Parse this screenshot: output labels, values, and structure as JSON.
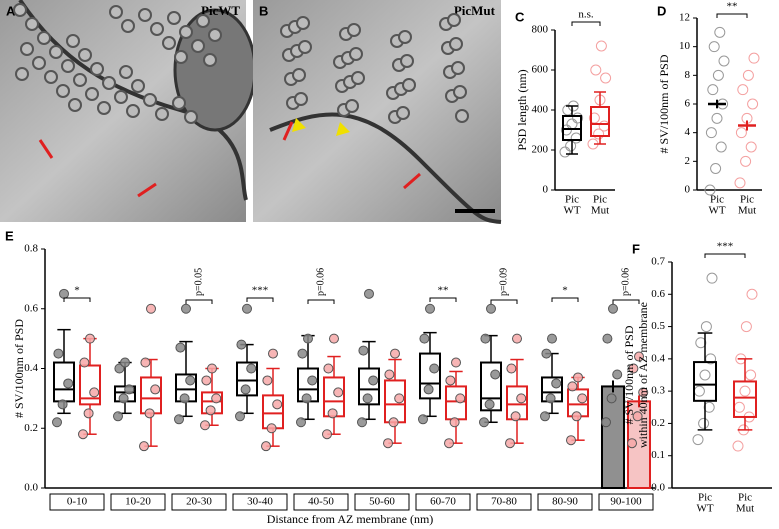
{
  "panels": {
    "A": {
      "letter": "A",
      "label": "PicWT"
    },
    "B": {
      "letter": "B",
      "label": "PicMut"
    }
  },
  "chart_data": [
    {
      "type": "box",
      "letter": "C",
      "ylabel": [
        "PSD length (nm)"
      ],
      "significance": "n.s.",
      "categories": [
        [
          "Pic",
          "WT"
        ],
        [
          "Pic",
          "Mut"
        ]
      ],
      "ylim": [
        0,
        800
      ],
      "yticks": [
        0,
        200,
        400,
        600,
        800
      ],
      "series": [
        {
          "color": "#000000",
          "point_color": "#999999",
          "q1": 250,
          "median": 305,
          "q3": 370,
          "whisker_low": 180,
          "whisker_high": 420,
          "points": [
            190,
            220,
            260,
            300,
            330,
            360,
            400,
            420
          ]
        },
        {
          "color": "#e02020",
          "point_color": "#f4a0a0",
          "q1": 270,
          "median": 330,
          "q3": 415,
          "whisker_low": 230,
          "whisker_high": 490,
          "points": [
            230,
            280,
            320,
            360,
            450,
            560,
            600,
            720
          ]
        }
      ]
    },
    {
      "type": "mean",
      "letter": "D",
      "ylabel": [
        "# SV/100nm of PSD"
      ],
      "significance": "**",
      "categories": [
        [
          "Pic",
          "WT"
        ],
        [
          "Pic",
          "Mut"
        ]
      ],
      "ylim": [
        0,
        12
      ],
      "yticks": [
        0,
        2,
        4,
        6,
        8,
        10,
        12
      ],
      "series": [
        {
          "color": "#000000",
          "point_color": "#999999",
          "mean": 6.0,
          "sem": 0.3,
          "points": [
            0,
            1.5,
            3,
            4,
            5,
            6,
            7,
            8,
            9,
            10,
            11
          ]
        },
        {
          "color": "#e02020",
          "point_color": "#f4a0a0",
          "mean": 4.5,
          "sem": 0.35,
          "points": [
            0.5,
            2,
            3,
            4,
            5,
            6,
            7,
            8,
            9.2
          ]
        }
      ]
    },
    {
      "type": "box",
      "letter": "E",
      "ylabel": [
        "# SV/100nm of PSD"
      ],
      "xlabel": "Distance from AZ membrane (nm)",
      "categories": [
        "0-10",
        "10-20",
        "20-30",
        "30-40",
        "40-50",
        "50-60",
        "60-70",
        "70-80",
        "80-90",
        "90-100"
      ],
      "significance": [
        "*",
        null,
        "p=0.05",
        "***",
        "p=0.06",
        null,
        "**",
        "p=0.09",
        "*",
        "p=0.06"
      ],
      "ylim": [
        0,
        0.8
      ],
      "yticks": [
        {
          "value": 0,
          "label": "0.0"
        },
        {
          "value": 0.2,
          "label": "0.2"
        },
        {
          "value": 0.4,
          "label": "0.4"
        },
        {
          "value": 0.6,
          "label": "0.6"
        },
        {
          "value": 0.8,
          "label": "0.8"
        }
      ],
      "series": [
        {
          "color": "#000000",
          "point_color": "#888888",
          "bar_color": "#909090",
          "q1": [
            0.29,
            0.29,
            0.29,
            0.31,
            0.29,
            0.28,
            0.3,
            0.26,
            0.29,
            null
          ],
          "median": [
            0.33,
            0.32,
            0.33,
            0.36,
            0.33,
            0.33,
            0.35,
            0.3,
            0.32,
            null
          ],
          "q3": [
            0.42,
            0.34,
            0.38,
            0.42,
            0.4,
            0.4,
            0.45,
            0.42,
            0.37,
            null
          ],
          "whisker_low": [
            0.25,
            0.25,
            0.24,
            0.25,
            0.23,
            0.23,
            0.24,
            0.22,
            0.25,
            null
          ],
          "whisker_high": [
            0.53,
            0.42,
            0.49,
            0.48,
            0.51,
            0.49,
            0.52,
            0.51,
            0.45,
            null
          ],
          "mean": [
            null,
            null,
            null,
            null,
            null,
            null,
            null,
            null,
            null,
            0.34
          ],
          "sem": [
            null,
            null,
            null,
            null,
            null,
            null,
            null,
            null,
            null,
            0.02
          ],
          "points": [
            [
              0.22,
              0.28,
              0.35,
              0.45,
              0.65
            ],
            [
              0.24,
              0.3,
              0.33,
              0.4,
              0.42
            ],
            [
              0.23,
              0.3,
              0.36,
              0.47,
              0.6
            ],
            [
              0.24,
              0.33,
              0.4,
              0.48,
              0.6
            ],
            [
              0.22,
              0.3,
              0.36,
              0.45,
              0.5
            ],
            [
              0.22,
              0.3,
              0.36,
              0.46,
              0.65
            ],
            [
              0.23,
              0.33,
              0.4,
              0.5,
              0.6
            ],
            [
              0.22,
              0.28,
              0.38,
              0.5,
              0.6
            ],
            [
              0.24,
              0.3,
              0.35,
              0.45,
              0.5
            ],
            [
              0.22,
              0.3,
              0.38,
              0.5,
              0.6
            ]
          ]
        },
        {
          "color": "#e02020",
          "point_color": "#f6a8a8",
          "bar_color": "#f6c4c4",
          "q1": [
            0.28,
            0.25,
            0.25,
            0.2,
            0.24,
            0.22,
            0.23,
            0.23,
            0.24,
            null
          ],
          "median": [
            0.3,
            0.3,
            0.29,
            0.25,
            0.29,
            0.28,
            0.29,
            0.28,
            0.28,
            null
          ],
          "q3": [
            0.41,
            0.37,
            0.32,
            0.31,
            0.37,
            0.36,
            0.34,
            0.34,
            0.33,
            null
          ],
          "whisker_low": [
            0.18,
            0.14,
            0.21,
            0.14,
            0.18,
            0.15,
            0.15,
            0.15,
            0.16,
            null
          ],
          "whisker_high": [
            0.5,
            0.43,
            0.4,
            0.4,
            0.44,
            0.43,
            0.39,
            0.43,
            0.37,
            null
          ],
          "mean": [
            null,
            null,
            null,
            null,
            null,
            null,
            null,
            null,
            null,
            0.29
          ],
          "sem": [
            null,
            null,
            null,
            null,
            null,
            null,
            null,
            null,
            null,
            0.02
          ],
          "points": [
            [
              0.18,
              0.25,
              0.32,
              0.42,
              0.5
            ],
            [
              0.14,
              0.25,
              0.33,
              0.42,
              0.6
            ],
            [
              0.21,
              0.26,
              0.3,
              0.36,
              0.4
            ],
            [
              0.14,
              0.2,
              0.28,
              0.36,
              0.45
            ],
            [
              0.18,
              0.25,
              0.32,
              0.4,
              0.5
            ],
            [
              0.15,
              0.22,
              0.3,
              0.38,
              0.45
            ],
            [
              0.15,
              0.22,
              0.3,
              0.36,
              0.42
            ],
            [
              0.15,
              0.24,
              0.3,
              0.4,
              0.5
            ],
            [
              0.16,
              0.24,
              0.3,
              0.34,
              0.37
            ],
            [
              0.15,
              0.24,
              0.32,
              0.4,
              0.44
            ]
          ]
        }
      ]
    },
    {
      "type": "box",
      "letter": "F",
      "ylabel": [
        "# SV/100nm of PSD",
        "within 40nm of AZ membrane"
      ],
      "significance": "***",
      "categories": [
        [
          "Pic",
          "WT"
        ],
        [
          "Pic",
          "Mut"
        ]
      ],
      "ylim": [
        0,
        0.7
      ],
      "yticks": [
        {
          "value": 0,
          "label": "0.0"
        },
        {
          "value": 0.1,
          "label": "0.1"
        },
        {
          "value": 0.2,
          "label": "0.2"
        },
        {
          "value": 0.3,
          "label": "0.3"
        },
        {
          "value": 0.4,
          "label": "0.4"
        },
        {
          "value": 0.5,
          "label": "0.5"
        },
        {
          "value": 0.6,
          "label": "0.6"
        },
        {
          "value": 0.7,
          "label": "0.7"
        }
      ],
      "series": [
        {
          "color": "#000000",
          "point_color": "#999999",
          "q1": 0.27,
          "median": 0.32,
          "q3": 0.39,
          "whisker_low": 0.18,
          "whisker_high": 0.48,
          "points": [
            0.15,
            0.2,
            0.25,
            0.3,
            0.35,
            0.4,
            0.45,
            0.5,
            0.65
          ]
        },
        {
          "color": "#e02020",
          "point_color": "#f4a0a0",
          "q1": 0.22,
          "median": 0.28,
          "q3": 0.33,
          "whisker_low": 0.18,
          "whisker_high": 0.4,
          "points": [
            0.13,
            0.18,
            0.22,
            0.25,
            0.3,
            0.35,
            0.4,
            0.5,
            0.6
          ]
        }
      ]
    }
  ]
}
